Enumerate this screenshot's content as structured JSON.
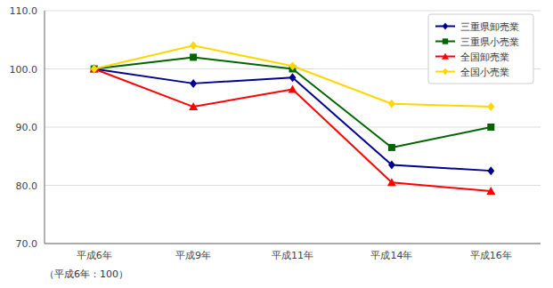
{
  "chart_data": {
    "type": "line",
    "categories": [
      "平成6年",
      "平成9年",
      "平成11年",
      "平成14年",
      "平成16年"
    ],
    "series": [
      {
        "name": "三重県卸売業",
        "color": "#000090",
        "marker": "diamond",
        "values": [
          100.0,
          97.5,
          98.5,
          83.5,
          82.5
        ]
      },
      {
        "name": "三重県小売業",
        "color": "#006400",
        "marker": "square",
        "values": [
          100.0,
          102.0,
          100.0,
          86.5,
          90.0
        ]
      },
      {
        "name": "全国卸売業",
        "color": "#FF0000",
        "marker": "triangle",
        "values": [
          100.0,
          93.5,
          96.5,
          80.5,
          79.0
        ]
      },
      {
        "name": "全国小売業",
        "color": "#FFD700",
        "marker": "diamond",
        "values": [
          100.0,
          104.0,
          100.5,
          94.0,
          93.5
        ]
      }
    ],
    "ylim": [
      70.0,
      110.0
    ],
    "yticks": [
      {
        "value": 70.0,
        "label": "70.0"
      },
      {
        "value": 80.0,
        "label": "80.0"
      },
      {
        "value": 90.0,
        "label": "90.0"
      },
      {
        "value": 100.0,
        "label": "100.0"
      },
      {
        "value": 110.0,
        "label": "110.0"
      }
    ],
    "grid": true,
    "legend": "top-right",
    "annotations": [
      "（平成6年：100）"
    ]
  }
}
